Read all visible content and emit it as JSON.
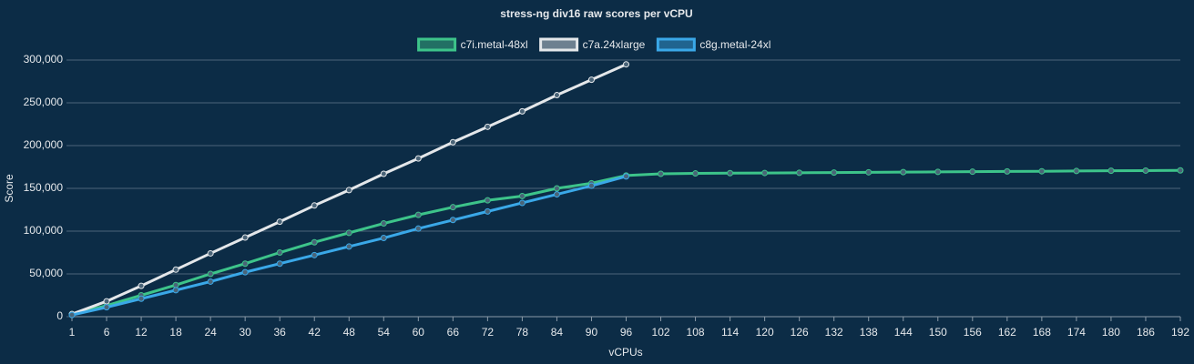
{
  "chart_data": {
    "type": "line",
    "title": "stress-ng div16 raw scores per vCPU",
    "x_label": "vCPUs",
    "y_label": "Score",
    "categories": [
      "1",
      "6",
      "12",
      "18",
      "24",
      "30",
      "36",
      "42",
      "48",
      "54",
      "60",
      "66",
      "72",
      "78",
      "84",
      "90",
      "96",
      "102",
      "108",
      "114",
      "120",
      "126",
      "132",
      "138",
      "144",
      "150",
      "156",
      "162",
      "168",
      "174",
      "180",
      "186",
      "192"
    ],
    "series": [
      {
        "name": "c7i.metal-48xl",
        "color": "#3dc48a",
        "values": [
          3000,
          13000,
          25000,
          37000,
          50000,
          62000,
          75000,
          87000,
          98000,
          109000,
          119000,
          128000,
          136000,
          141000,
          150000,
          156000,
          165000,
          167000,
          167500,
          167800,
          168000,
          168200,
          168500,
          168800,
          169000,
          169300,
          169500,
          169800,
          170000,
          170300,
          170600,
          170800,
          171000
        ]
      },
      {
        "name": "c7a.24xlarge",
        "color": "#e4e7ea",
        "values": [
          3000,
          18000,
          36000,
          55000,
          74000,
          92500,
          111000,
          130000,
          148000,
          167000,
          185000,
          204000,
          222000,
          240000,
          259000,
          277000,
          295000,
          null,
          null,
          null,
          null,
          null,
          null,
          null,
          null,
          null,
          null,
          null,
          null,
          null,
          null,
          null,
          null
        ]
      },
      {
        "name": "c8g.metal-24xl",
        "color": "#3aa8e8",
        "values": [
          2000,
          11000,
          21000,
          31000,
          41000,
          52000,
          62000,
          72000,
          82000,
          92000,
          103000,
          113000,
          123000,
          133000,
          143000,
          153000,
          164000,
          null,
          null,
          null,
          null,
          null,
          null,
          null,
          null,
          null,
          null,
          null,
          null,
          null,
          null,
          null,
          null
        ]
      }
    ],
    "ylim": [
      0,
      300000
    ],
    "yticks": [
      0,
      {
        "value": 50000,
        "label": "50,000"
      },
      {
        "value": 100000,
        "label": "100,000"
      },
      {
        "value": 150000,
        "label": "150,000"
      },
      {
        "value": 200000,
        "label": "200,000"
      },
      {
        "value": 250000,
        "label": "250,000"
      },
      {
        "value": 300000,
        "label": "300,000"
      }
    ],
    "grid": true,
    "legend": "top"
  }
}
